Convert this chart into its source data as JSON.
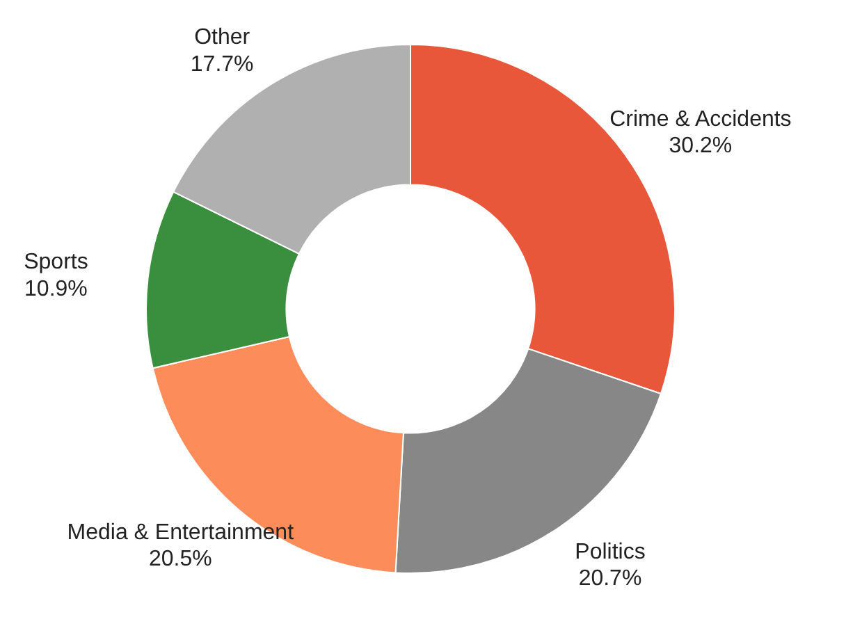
{
  "chart_data": {
    "type": "donut",
    "categories": [
      "Crime & Accidents",
      "Politics",
      "Media & Entertainment",
      "Sports",
      "Other"
    ],
    "values": [
      30.2,
      20.7,
      20.5,
      10.9,
      17.7
    ],
    "colors": [
      "#e8573a",
      "#878787",
      "#fc8c5a",
      "#3a8f3e",
      "#b0b0b0"
    ],
    "value_labels": [
      "30.2%",
      "20.7%",
      "20.5%",
      "10.9%",
      "17.7%"
    ]
  }
}
